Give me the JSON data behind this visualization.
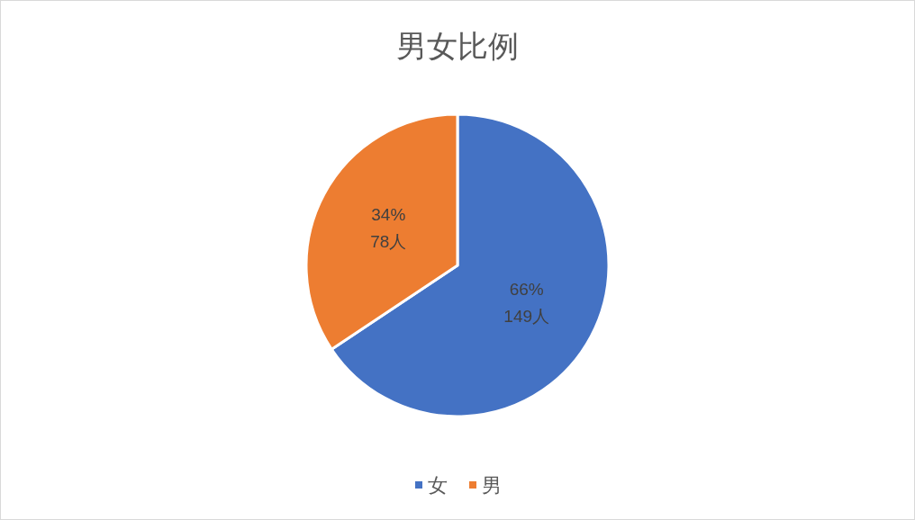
{
  "chart_data": {
    "type": "pie",
    "title": "男女比例",
    "categories": [
      "女",
      "男"
    ],
    "values": [
      149,
      78
    ],
    "colors": [
      "#4472c4",
      "#ed7d31"
    ],
    "value_labels": [
      "66%\n149人",
      "34%\n78人"
    ],
    "legend": "bottom"
  }
}
